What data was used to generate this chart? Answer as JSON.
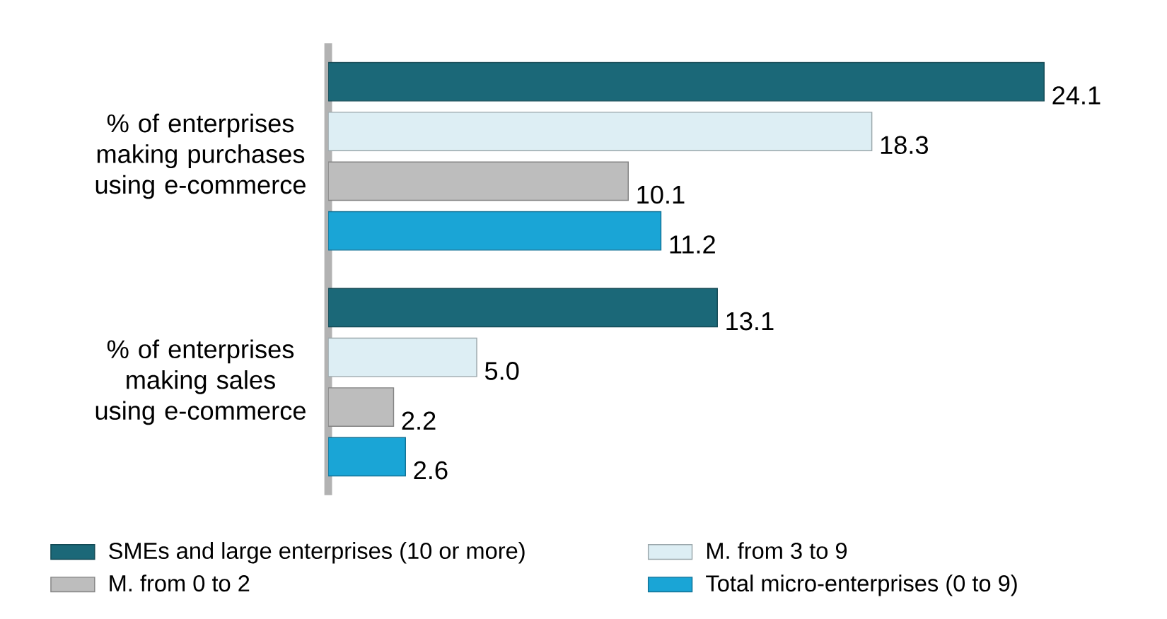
{
  "chart_data": {
    "type": "bar",
    "orientation": "horizontal",
    "categories": [
      "% of enterprises making purchases using e-commerce",
      "% of enterprises making sales using e-commerce"
    ],
    "series": [
      {
        "name": "SMEs and large enterprises (10 or more)",
        "color": "#1b6878",
        "values": [
          24.1,
          13.1
        ],
        "value_labels": [
          "24.1",
          "13.1"
        ]
      },
      {
        "name": "M. from 3 to 9",
        "color": "#ddeef4",
        "values": [
          18.3,
          5.0
        ],
        "value_labels": [
          "18.3",
          "5.0"
        ]
      },
      {
        "name": "M. from 0 to 2",
        "color": "#bdbdbd",
        "values": [
          10.1,
          2.2
        ],
        "value_labels": [
          "10.1",
          "2.2"
        ]
      },
      {
        "name": "Total micro-enterprises (0 to 9)",
        "color": "#1aa5d6",
        "values": [
          11.2,
          2.6
        ],
        "value_labels": [
          "11.2",
          "2.6"
        ]
      }
    ],
    "legend": "bottom"
  }
}
